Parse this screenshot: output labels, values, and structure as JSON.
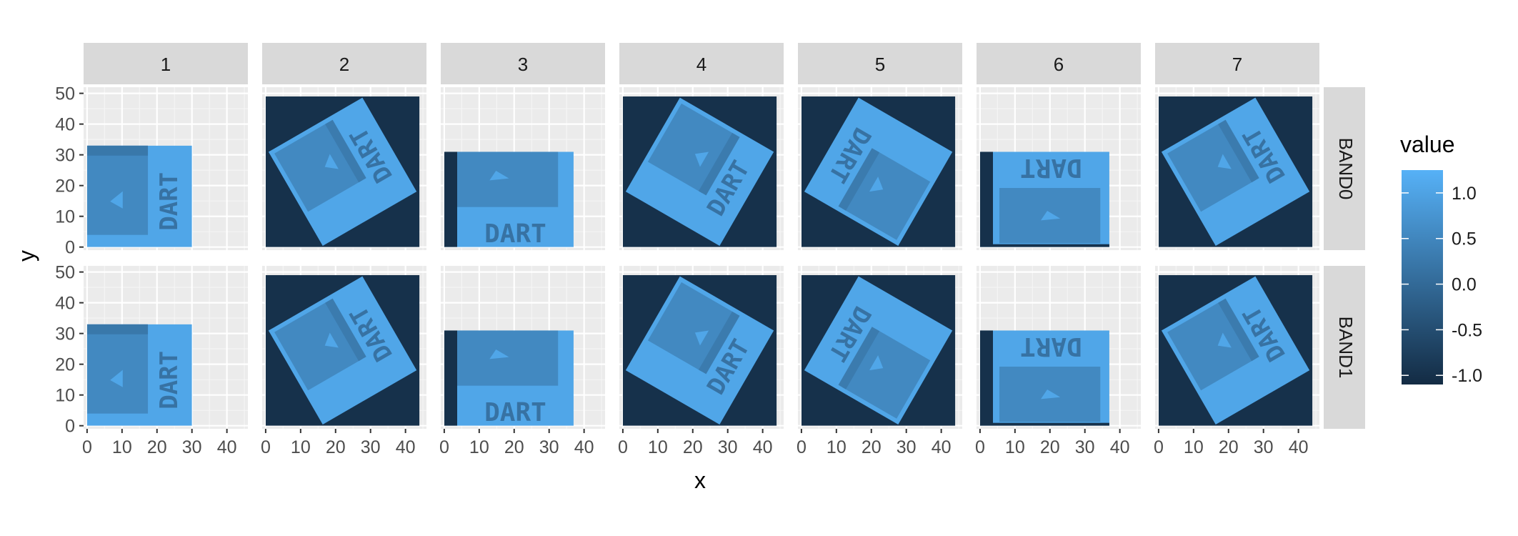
{
  "chart_data": {
    "type": "heatmap",
    "title": "",
    "xlabel": "x",
    "ylabel": "y",
    "facet_columns": [
      "1",
      "2",
      "3",
      "4",
      "5",
      "6",
      "7"
    ],
    "facet_rows": [
      "BAND0",
      "BAND1"
    ],
    "xlim": [
      -1,
      46
    ],
    "ylim": [
      -1,
      52
    ],
    "x_ticks": [
      "0",
      "10",
      "20",
      "30",
      "40"
    ],
    "y_ticks": [
      "0",
      "10",
      "20",
      "30",
      "40",
      "50"
    ],
    "grid": true,
    "legend": {
      "title": "value",
      "position": "right",
      "range": [
        -1.1,
        1.25
      ],
      "ticks": [
        "1.0",
        "0.5",
        "0.0",
        "-0.5",
        "-1.0"
      ],
      "tick_values": [
        1.0,
        0.5,
        0.0,
        -0.5,
        -1.0
      ],
      "low_color": "#132B43",
      "high_color": "#56B1F7"
    },
    "panels": [
      {
        "col": "1",
        "raster_extent": {
          "x": [
            0,
            30
          ],
          "y": [
            0,
            33
          ]
        },
        "background_value": null,
        "rotation_deg": 0,
        "logo_text": "DART",
        "text_orientation": "vertical-up"
      },
      {
        "col": "2",
        "raster_extent": {
          "x": [
            0,
            44
          ],
          "y": [
            0,
            49
          ]
        },
        "background_value": -1.0,
        "rotation_deg": 30,
        "logo_text": "DART",
        "text_orientation": "rotated"
      },
      {
        "col": "3",
        "raster_extent": {
          "x": [
            0,
            37
          ],
          "y": [
            0,
            31
          ]
        },
        "background_value": null,
        "rotation_deg": 0,
        "logo_text": "DART",
        "text_orientation": "horizontal"
      },
      {
        "col": "4",
        "raster_extent": {
          "x": [
            0,
            44
          ],
          "y": [
            0,
            49
          ]
        },
        "background_value": -1.0,
        "rotation_deg": -30,
        "logo_text": "DART",
        "text_orientation": "rotated"
      },
      {
        "col": "5",
        "raster_extent": {
          "x": [
            0,
            44
          ],
          "y": [
            0,
            49
          ]
        },
        "background_value": -1.0,
        "rotation_deg": 150,
        "logo_text": "DART",
        "text_orientation": "rotated"
      },
      {
        "col": "6",
        "raster_extent": {
          "x": [
            0,
            37
          ],
          "y": [
            0,
            31
          ]
        },
        "background_value": null,
        "rotation_deg": 180,
        "logo_text": "DART",
        "text_orientation": "upside-down"
      },
      {
        "col": "7",
        "raster_extent": {
          "x": [
            0,
            44
          ],
          "y": [
            0,
            49
          ]
        },
        "background_value": -1.0,
        "rotation_deg": 30,
        "logo_text": "DART",
        "text_orientation": "rotated"
      }
    ]
  }
}
